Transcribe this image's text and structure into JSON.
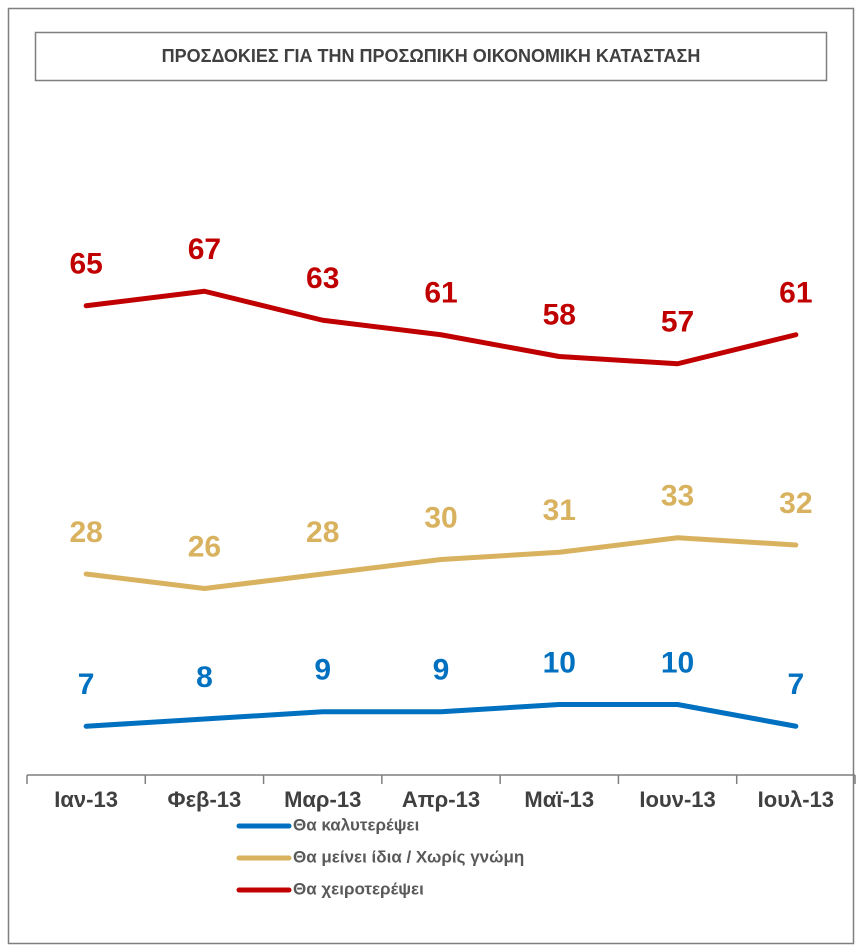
{
  "chart_data": {
    "type": "line",
    "title": "ΠΡΟΣΔΟΚΙΕΣ ΓΙΑ ΤΗΝ ΠΡΟΣΩΠΙΚΗ ΟΙΚΟΝΟΜΙΚΗ ΚΑΤΑΣΤΑΣΗ",
    "categories": [
      "Ιαν-13",
      "Φεβ-13",
      "Μαρ-13",
      "Απρ-13",
      "Μαϊ-13",
      "Ιουν-13",
      "Ιουλ-13"
    ],
    "series": [
      {
        "name": "Θα καλυτερέψει",
        "color": "#0070c0",
        "values": [
          7,
          8,
          9,
          9,
          10,
          10,
          7
        ]
      },
      {
        "name": "Θα μείνει ίδια / Χωρίς γνώμη",
        "color": "#d9b25f",
        "values": [
          28,
          26,
          28,
          30,
          31,
          33,
          32
        ]
      },
      {
        "name": "Θα χειροτερέψει",
        "color": "#c00000",
        "values": [
          65,
          67,
          63,
          61,
          58,
          57,
          61
        ]
      }
    ],
    "ylim": [
      0,
      100
    ]
  }
}
